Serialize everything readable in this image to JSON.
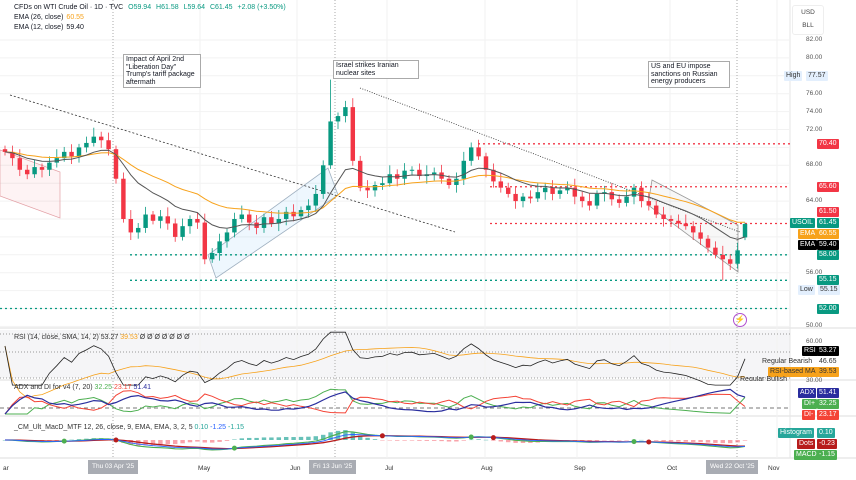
{
  "header": {
    "symbol_line": "CFDs on WTI Crude Oil · 1D · TVC",
    "open": "O59.94",
    "high": "H61.58",
    "low": "L59.64",
    "close": "C61.45",
    "change": "+2.08 (+3.50%)",
    "ema26_label": "EMA (26, close)",
    "ema26_value": "60.55",
    "ema12_label": "EMA (12, close)",
    "ema12_value": "59.40"
  },
  "axis": {
    "currency": "USD",
    "unit": "BLL",
    "ticks": [
      "82.00",
      "80.00",
      "76.00",
      "74.00",
      "72.00",
      "68.00",
      "64.00",
      "56.00",
      "50.00"
    ],
    "high_label": "High",
    "high_value": "77.57",
    "low_label": "Low",
    "low_value": "55.15",
    "levels": [
      {
        "value": "70.40",
        "color": "#f23645"
      },
      {
        "value": "65.60",
        "color": "#f23645"
      },
      {
        "value": "61.50",
        "color": "#f23645"
      },
      {
        "value": "58.00",
        "color": "#089981"
      },
      {
        "value": "55.15",
        "color": "#089981"
      },
      {
        "value": "52.00",
        "color": "#089981"
      }
    ],
    "symbol_tag": "USOIL",
    "symbol_price": "61.45",
    "ema_tag": "EMA",
    "ema26_price": "60.55",
    "ema12_price": "59.40"
  },
  "annotations": [
    "Impact of April 2nd \"Liberation Day\" Trump's tariff package aftermath",
    "Israel strikes Iranian nuclear sites",
    "US and EU impose sanctions on Russian energy producers"
  ],
  "rsi": {
    "label": "RSI (14, close, SMA, 14, 2)",
    "value": "53.27",
    "ma_value": "39.53",
    "extras": "Ø Ø Ø Ø Ø Ø Ø",
    "tick_60": "60.00",
    "tag_rsi": "RSI",
    "tag_bearish": "Regular Bearish",
    "bearish_value": "46.65",
    "tag_ma": "RSI-based MA",
    "tag_bullish": "Regular Bullish",
    "tick_30": "30.00"
  },
  "adx": {
    "label": "ADX and DI for v4 (7, 20)",
    "di_plus": "32.25",
    "di_minus": "23.17",
    "adx": "51.41",
    "tag_adx": "ADX",
    "tag_di_plus": "DI+",
    "tag_di_minus": "DI-"
  },
  "macd": {
    "label": "_CM_Ult_MacD_MTF",
    "params": "12, 26, close, 9, EMA, EMA, 3, 2, 5",
    "v1": "0.10",
    "v2": "-1.25",
    "v3": "-1.15",
    "tag_hist": "Histogram",
    "hist_value": "0.10",
    "tag_dots": "Dots",
    "dots_value": "-0.23",
    "tag_macd": "MACD",
    "macd_value": "-1.15"
  },
  "time_axis": {
    "labels": [
      "ar",
      "May",
      "Jun",
      "Jul",
      "Aug",
      "Sep",
      "Oct",
      "Nov"
    ],
    "cursor_dates": [
      "Thu 03 Apr '25",
      "Fri 13 Jun '25",
      "Wed 22 Oct '25"
    ]
  },
  "colors": {
    "up": "#089981",
    "down": "#f23645",
    "ema26": "#f7a21b",
    "ema12": "#131722",
    "adx": "#2a2e9e",
    "di_plus": "#4caf50",
    "di_minus": "#f44336"
  },
  "chart_data": {
    "type": "candlestick",
    "title": "CFDs on WTI Crude Oil · 1D · TVC",
    "ylabel": "USD/BLL",
    "ylim": [
      49,
      84
    ],
    "x_range": [
      "late Mar 2025",
      "Oct 22 2025"
    ],
    "closes": [
      69.5,
      68.8,
      67.5,
      67.0,
      67.8,
      67.5,
      68.3,
      68.8,
      69.5,
      69.0,
      70.0,
      70.5,
      71.2,
      70.8,
      69.8,
      66.5,
      62.0,
      60.5,
      61.0,
      62.5,
      61.8,
      62.3,
      61.5,
      60.0,
      61.2,
      62.0,
      61.6,
      57.5,
      58.2,
      59.5,
      60.5,
      62.0,
      62.5,
      61.6,
      61.0,
      62.2,
      61.5,
      62.0,
      62.8,
      62.3,
      63.0,
      63.5,
      64.8,
      68.0,
      72.9,
      73.5,
      74.5,
      68.5,
      65.5,
      65.2,
      65.8,
      66.0,
      67.0,
      66.5,
      67.4,
      67.5,
      66.8,
      67.0,
      67.2,
      66.5,
      65.8,
      66.5,
      68.5,
      70.0,
      69.0,
      67.5,
      66.2,
      65.5,
      64.8,
      64.0,
      64.5,
      64.3,
      65.0,
      65.5,
      64.8,
      65.2,
      65.5,
      64.5,
      64.0,
      63.5,
      64.8,
      65.0,
      64.2,
      63.8,
      64.5,
      65.5,
      64.0,
      63.5,
      62.5,
      62.0,
      61.8,
      61.5,
      61.2,
      60.5,
      59.8,
      58.8,
      58.0,
      57.5,
      57.0,
      58.5,
      61.45
    ],
    "high": 77.57,
    "low": 55.15,
    "last": {
      "open": 59.94,
      "high": 61.58,
      "low": 59.64,
      "close": 61.45
    },
    "horizontal_levels": [
      70.4,
      65.6,
      61.5,
      58.0,
      55.15,
      52.0
    ],
    "series": [
      {
        "name": "EMA (26, close)"
      },
      {
        "name": "EMA (12, close)"
      }
    ]
  }
}
